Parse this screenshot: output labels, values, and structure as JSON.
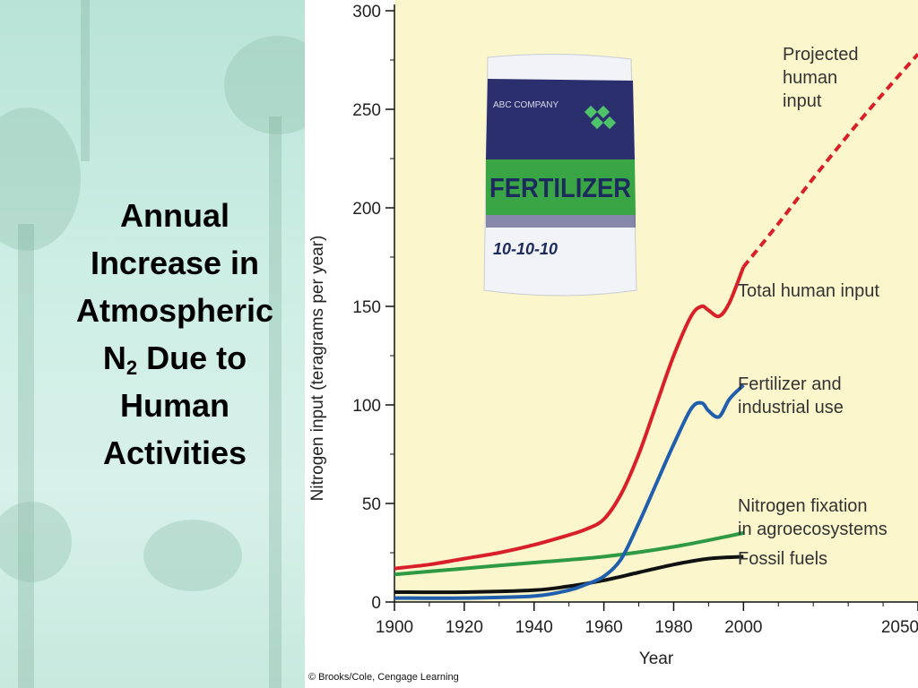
{
  "slide": {
    "title_parts": [
      "Annual",
      "Increase in",
      "Atmospheric",
      "N",
      "2",
      " Due to",
      "Human",
      "Activities"
    ]
  },
  "chart_data": {
    "type": "line",
    "xlabel": "Year",
    "ylabel": "Nitrogen input (teragrams per year)",
    "xlim": [
      1900,
      2050
    ],
    "ylim": [
      0,
      300
    ],
    "x_ticks": [
      1900,
      1920,
      1940,
      1960,
      1980,
      2000,
      2050
    ],
    "y_ticks": [
      0,
      50,
      100,
      150,
      200,
      250,
      300
    ],
    "grid": false,
    "background": "#fbf6cc",
    "series": [
      {
        "name": "Total human input",
        "color": "#d9202a",
        "style": "solid",
        "x": [
          1900,
          1910,
          1920,
          1930,
          1940,
          1950,
          1955,
          1960,
          1965,
          1970,
          1975,
          1980,
          1985,
          1988,
          1990,
          1993,
          1996,
          2000
        ],
        "y": [
          17,
          19,
          22,
          25,
          29,
          34,
          37,
          42,
          55,
          75,
          100,
          125,
          145,
          150,
          148,
          145,
          152,
          170
        ]
      },
      {
        "name": "Projected human input",
        "color": "#d9202a",
        "style": "dashed",
        "x": [
          2000,
          2010,
          2020,
          2030,
          2040,
          2050
        ],
        "y": [
          170,
          192,
          215,
          237,
          258,
          278
        ]
      },
      {
        "name": "Fertilizer and industrial use",
        "color": "#1f5fad",
        "style": "solid",
        "x": [
          1900,
          1920,
          1940,
          1950,
          1955,
          1960,
          1965,
          1970,
          1975,
          1980,
          1985,
          1988,
          1990,
          1993,
          1996,
          2000
        ],
        "y": [
          2,
          2,
          3,
          6,
          9,
          13,
          22,
          40,
          60,
          80,
          98,
          101,
          97,
          94,
          103,
          110
        ]
      },
      {
        "name": "Nitrogen fixation in agroecosystems",
        "color": "#2e9a45",
        "style": "solid",
        "x": [
          1900,
          1920,
          1940,
          1960,
          1980,
          2000
        ],
        "y": [
          14,
          17,
          20,
          23,
          28,
          35
        ]
      },
      {
        "name": "Fossil fuels",
        "color": "#111111",
        "style": "solid",
        "x": [
          1900,
          1920,
          1940,
          1950,
          1960,
          1970,
          1980,
          1990,
          2000
        ],
        "y": [
          5,
          5,
          6,
          8,
          11,
          15,
          19,
          22,
          23
        ]
      }
    ],
    "labels": {
      "projected": [
        "Projected",
        "human",
        "input"
      ],
      "total": [
        "Total human input"
      ],
      "fertilizer": [
        "Fertilizer and",
        "industrial use"
      ],
      "fixation": [
        "Nitrogen fixation",
        "in agroecosystems"
      ],
      "fossil": [
        "Fossil fuels"
      ]
    }
  },
  "image": {
    "bag_company": "ABC COMPANY",
    "bag_product": "FERTILIZER",
    "bag_ratio": "10-10-10"
  },
  "credit": "© Brooks/Cole, Cengage Learning"
}
